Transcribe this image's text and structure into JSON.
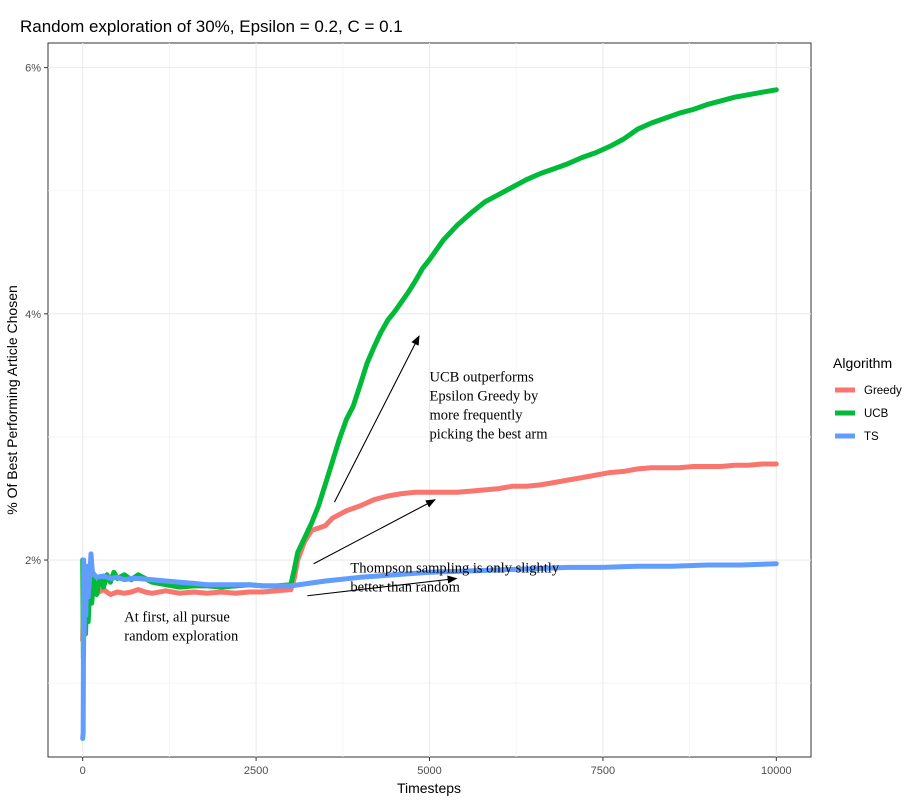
{
  "chart_data": {
    "type": "line",
    "title": "Random exploration of 30%, Epsilon = 0.2, C = 0.1",
    "xlabel": "Timesteps",
    "ylabel": "% Of Best Performing Article Chosen",
    "xlim": [
      -500,
      10500
    ],
    "ylim": [
      0.4,
      6.2
    ],
    "x_ticks": [
      0,
      2500,
      5000,
      7500,
      10000
    ],
    "x_tick_labels": [
      "0",
      "2500",
      "5000",
      "7500",
      "10000"
    ],
    "y_ticks": [
      2,
      4,
      6
    ],
    "y_tick_labels": [
      "2%",
      "4%",
      "6%"
    ],
    "grid": true,
    "legend": {
      "title": "Algorithm",
      "position": "right"
    },
    "series": [
      {
        "name": "Greedy",
        "color": "#F8766D",
        "points": [
          [
            0,
            1.35
          ],
          [
            15,
            1.75
          ],
          [
            30,
            1.5
          ],
          [
            50,
            1.9
          ],
          [
            70,
            1.6
          ],
          [
            90,
            1.8
          ],
          [
            110,
            1.7
          ],
          [
            150,
            1.8
          ],
          [
            200,
            1.73
          ],
          [
            300,
            1.76
          ],
          [
            400,
            1.72
          ],
          [
            500,
            1.74
          ],
          [
            600,
            1.73
          ],
          [
            700,
            1.74
          ],
          [
            800,
            1.76
          ],
          [
            900,
            1.74
          ],
          [
            1000,
            1.73
          ],
          [
            1200,
            1.75
          ],
          [
            1400,
            1.73
          ],
          [
            1600,
            1.74
          ],
          [
            1800,
            1.73
          ],
          [
            2000,
            1.74
          ],
          [
            2200,
            1.73
          ],
          [
            2400,
            1.74
          ],
          [
            2600,
            1.74
          ],
          [
            2800,
            1.75
          ],
          [
            3000,
            1.76
          ],
          [
            3050,
            1.85
          ],
          [
            3100,
            2.0
          ],
          [
            3200,
            2.15
          ],
          [
            3300,
            2.24
          ],
          [
            3500,
            2.28
          ],
          [
            3600,
            2.34
          ],
          [
            3800,
            2.4
          ],
          [
            4000,
            2.44
          ],
          [
            4200,
            2.49
          ],
          [
            4400,
            2.52
          ],
          [
            4600,
            2.54
          ],
          [
            4800,
            2.55
          ],
          [
            5000,
            2.55
          ],
          [
            5200,
            2.55
          ],
          [
            5400,
            2.55
          ],
          [
            5600,
            2.56
          ],
          [
            5800,
            2.57
          ],
          [
            6000,
            2.58
          ],
          [
            6200,
            2.6
          ],
          [
            6400,
            2.6
          ],
          [
            6600,
            2.61
          ],
          [
            6800,
            2.63
          ],
          [
            7000,
            2.65
          ],
          [
            7200,
            2.67
          ],
          [
            7400,
            2.69
          ],
          [
            7600,
            2.71
          ],
          [
            7800,
            2.72
          ],
          [
            8000,
            2.74
          ],
          [
            8200,
            2.75
          ],
          [
            8400,
            2.75
          ],
          [
            8600,
            2.75
          ],
          [
            8800,
            2.76
          ],
          [
            9000,
            2.76
          ],
          [
            9200,
            2.76
          ],
          [
            9400,
            2.77
          ],
          [
            9600,
            2.77
          ],
          [
            9800,
            2.78
          ],
          [
            10000,
            2.78
          ]
        ]
      },
      {
        "name": "UCB",
        "color": "#00BA38",
        "points": [
          [
            0,
            2.0
          ],
          [
            10,
            1.2
          ],
          [
            25,
            1.8
          ],
          [
            40,
            1.4
          ],
          [
            60,
            1.7
          ],
          [
            80,
            1.5
          ],
          [
            100,
            1.75
          ],
          [
            130,
            1.65
          ],
          [
            160,
            1.85
          ],
          [
            200,
            1.72
          ],
          [
            250,
            1.85
          ],
          [
            300,
            1.78
          ],
          [
            350,
            1.88
          ],
          [
            400,
            1.82
          ],
          [
            450,
            1.9
          ],
          [
            500,
            1.85
          ],
          [
            600,
            1.88
          ],
          [
            700,
            1.84
          ],
          [
            800,
            1.88
          ],
          [
            900,
            1.85
          ],
          [
            1000,
            1.82
          ],
          [
            1200,
            1.8
          ],
          [
            1400,
            1.78
          ],
          [
            1600,
            1.79
          ],
          [
            1800,
            1.79
          ],
          [
            2000,
            1.78
          ],
          [
            2200,
            1.79
          ],
          [
            2400,
            1.8
          ],
          [
            2600,
            1.79
          ],
          [
            2800,
            1.79
          ],
          [
            3000,
            1.8
          ],
          [
            3050,
            1.92
          ],
          [
            3100,
            2.06
          ],
          [
            3200,
            2.18
          ],
          [
            3300,
            2.3
          ],
          [
            3400,
            2.44
          ],
          [
            3500,
            2.62
          ],
          [
            3600,
            2.8
          ],
          [
            3700,
            2.98
          ],
          [
            3800,
            3.14
          ],
          [
            3900,
            3.25
          ],
          [
            4000,
            3.42
          ],
          [
            4100,
            3.6
          ],
          [
            4200,
            3.73
          ],
          [
            4300,
            3.85
          ],
          [
            4400,
            3.95
          ],
          [
            4500,
            4.02
          ],
          [
            4600,
            4.1
          ],
          [
            4700,
            4.18
          ],
          [
            4800,
            4.27
          ],
          [
            4900,
            4.37
          ],
          [
            5000,
            4.44
          ],
          [
            5100,
            4.52
          ],
          [
            5200,
            4.6
          ],
          [
            5400,
            4.72
          ],
          [
            5600,
            4.82
          ],
          [
            5800,
            4.91
          ],
          [
            6000,
            4.97
          ],
          [
            6200,
            5.03
          ],
          [
            6400,
            5.09
          ],
          [
            6600,
            5.14
          ],
          [
            6800,
            5.18
          ],
          [
            7000,
            5.22
          ],
          [
            7200,
            5.27
          ],
          [
            7400,
            5.31
          ],
          [
            7600,
            5.36
          ],
          [
            7800,
            5.42
          ],
          [
            8000,
            5.5
          ],
          [
            8200,
            5.55
          ],
          [
            8400,
            5.59
          ],
          [
            8600,
            5.63
          ],
          [
            8800,
            5.66
          ],
          [
            9000,
            5.7
          ],
          [
            9200,
            5.73
          ],
          [
            9400,
            5.76
          ],
          [
            9600,
            5.78
          ],
          [
            9800,
            5.8
          ],
          [
            10000,
            5.82
          ]
        ]
      },
      {
        "name": "TS",
        "color": "#619CFF",
        "points": [
          [
            0,
            0.55
          ],
          [
            8,
            0.6
          ],
          [
            14,
            2.0
          ],
          [
            22,
            1.4
          ],
          [
            30,
            1.9
          ],
          [
            45,
            1.55
          ],
          [
            60,
            1.95
          ],
          [
            80,
            1.7
          ],
          [
            100,
            1.85
          ],
          [
            120,
            2.05
          ],
          [
            140,
            1.9
          ],
          [
            170,
            1.88
          ],
          [
            200,
            1.86
          ],
          [
            300,
            1.87
          ],
          [
            400,
            1.85
          ],
          [
            500,
            1.86
          ],
          [
            600,
            1.84
          ],
          [
            700,
            1.85
          ],
          [
            800,
            1.85
          ],
          [
            1000,
            1.84
          ],
          [
            1200,
            1.83
          ],
          [
            1400,
            1.82
          ],
          [
            1600,
            1.81
          ],
          [
            1800,
            1.8
          ],
          [
            2000,
            1.8
          ],
          [
            2200,
            1.8
          ],
          [
            2400,
            1.8
          ],
          [
            2600,
            1.79
          ],
          [
            2800,
            1.79
          ],
          [
            3000,
            1.79
          ],
          [
            3500,
            1.83
          ],
          [
            4000,
            1.86
          ],
          [
            4500,
            1.88
          ],
          [
            5000,
            1.9
          ],
          [
            5500,
            1.91
          ],
          [
            6000,
            1.92
          ],
          [
            6500,
            1.93
          ],
          [
            7000,
            1.94
          ],
          [
            7500,
            1.94
          ],
          [
            8000,
            1.95
          ],
          [
            8500,
            1.95
          ],
          [
            9000,
            1.96
          ],
          [
            9500,
            1.96
          ],
          [
            10000,
            1.97
          ]
        ]
      }
    ],
    "annotations": [
      {
        "id": "first",
        "text_lines": [
          "At first, all pursue",
          "random exploration"
        ],
        "anchor": [
          600,
          1.5
        ]
      },
      {
        "id": "ucb",
        "text_lines": [
          "UCB outperforms",
          "Epsilon Greedy by",
          "more frequently",
          "picking the best arm"
        ],
        "anchor": [
          5000,
          3.45
        ]
      },
      {
        "id": "ts",
        "text_lines": [
          "Thompson sampling is only slightly",
          "better than random"
        ],
        "anchor": [
          3860,
          1.9
        ]
      }
    ],
    "arrows": [
      {
        "from": [
          3630,
          2.47
        ],
        "to": [
          4850,
          3.82
        ]
      },
      {
        "from": [
          3330,
          1.97
        ],
        "to": [
          5080,
          2.49
        ]
      },
      {
        "from": [
          3240,
          1.71
        ],
        "to": [
          5390,
          1.85
        ]
      }
    ]
  }
}
